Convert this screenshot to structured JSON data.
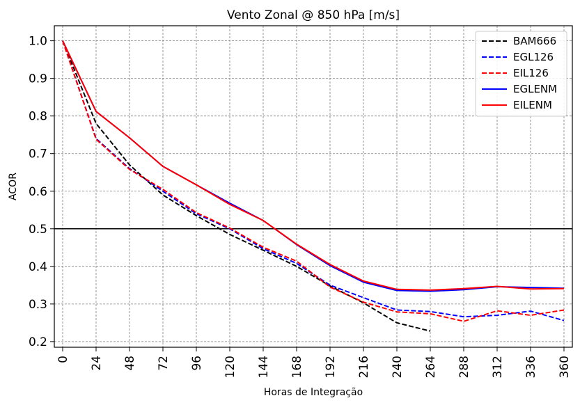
{
  "chart_data": {
    "type": "line",
    "title": "Vento Zonal @ 850 hPa [m/s]",
    "xlabel": "Horas de Integração",
    "ylabel": "ACOR",
    "x_ticks": [
      "0",
      "24",
      "48",
      "72",
      "96",
      "120",
      "144",
      "168",
      "192",
      "216",
      "240",
      "264",
      "288",
      "312",
      "336",
      "360"
    ],
    "x_range": [
      -6,
      366
    ],
    "ylim": [
      0.185,
      1.04
    ],
    "y_ticks": [
      "0.2",
      "0.3",
      "0.4",
      "0.5",
      "0.6",
      "0.7",
      "0.8",
      "0.9",
      "1.0"
    ],
    "reference_line": 0.5,
    "grid": true,
    "legend_position": "top-right",
    "series": [
      {
        "name": "BAM666",
        "color": "#000000",
        "style": "dashed",
        "x": [
          0,
          24,
          48,
          72,
          96,
          120,
          144,
          168,
          192,
          216,
          240,
          264
        ],
        "y": [
          1.0,
          0.78,
          0.67,
          0.59,
          0.535,
          0.485,
          0.443,
          0.4,
          0.348,
          0.303,
          0.25,
          0.228
        ]
      },
      {
        "name": "EGL126",
        "color": "#0000ff",
        "style": "dashed",
        "x": [
          0,
          24,
          48,
          72,
          96,
          120,
          144,
          168,
          192,
          216,
          240,
          264,
          288,
          312,
          336,
          360
        ],
        "y": [
          1.0,
          0.74,
          0.66,
          0.6,
          0.54,
          0.5,
          0.447,
          0.408,
          0.35,
          0.317,
          0.284,
          0.28,
          0.266,
          0.27,
          0.281,
          0.256
        ]
      },
      {
        "name": "EIL126",
        "color": "#ff0000",
        "style": "dashed",
        "x": [
          0,
          24,
          48,
          72,
          96,
          120,
          144,
          168,
          192,
          216,
          240,
          264,
          288,
          312,
          336,
          360
        ],
        "y": [
          1.0,
          0.738,
          0.658,
          0.605,
          0.543,
          0.502,
          0.451,
          0.414,
          0.345,
          0.305,
          0.279,
          0.274,
          0.254,
          0.282,
          0.27,
          0.284
        ]
      },
      {
        "name": "EGLENM",
        "color": "#0000ff",
        "style": "solid",
        "x": [
          0,
          24,
          48,
          72,
          96,
          120,
          144,
          168,
          192,
          216,
          240,
          264,
          288,
          312,
          336,
          360
        ],
        "y": [
          1.0,
          0.812,
          0.742,
          0.666,
          0.617,
          0.568,
          0.522,
          0.458,
          0.402,
          0.358,
          0.336,
          0.334,
          0.338,
          0.346,
          0.344,
          0.342
        ]
      },
      {
        "name": "EILENM",
        "color": "#ff0000",
        "style": "solid",
        "x": [
          0,
          24,
          48,
          72,
          96,
          120,
          144,
          168,
          192,
          216,
          240,
          264,
          288,
          312,
          336,
          360
        ],
        "y": [
          1.0,
          0.812,
          0.742,
          0.666,
          0.617,
          0.565,
          0.522,
          0.459,
          0.405,
          0.361,
          0.339,
          0.337,
          0.341,
          0.347,
          0.34,
          0.341
        ]
      }
    ]
  }
}
